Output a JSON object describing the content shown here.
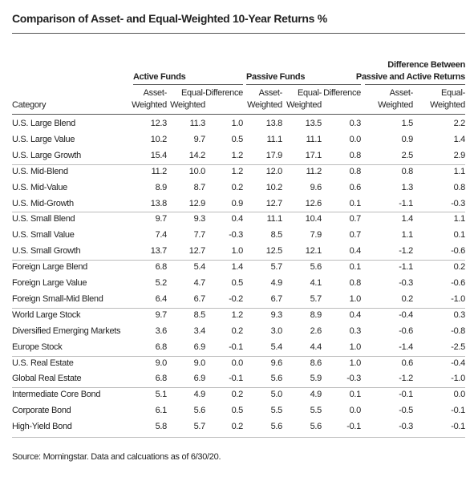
{
  "title": "Comparison of Asset- and Equal-Weighted 10-Year Returns %",
  "table": {
    "group_headers": [
      "Active Funds",
      "Passive Funds",
      "Difference Between\nPassive and Active Returns"
    ],
    "columns": [
      "Category",
      "Asset-\nWeighted",
      "Equal-\nWeighted",
      "Difference",
      "Asset-\nWeighted",
      "Equal-\nWeighted",
      "Difference",
      "Asset-\nWeighted",
      "Equal-\nWeighted"
    ],
    "row_groups": [
      [
        [
          "U.S. Large Blend",
          "12.3",
          "11.3",
          "1.0",
          "13.8",
          "13.5",
          "0.3",
          "1.5",
          "2.2"
        ],
        [
          "U.S. Large Value",
          "10.2",
          "9.7",
          "0.5",
          "11.1",
          "11.1",
          "0.0",
          "0.9",
          "1.4"
        ],
        [
          "U.S. Large Growth",
          "15.4",
          "14.2",
          "1.2",
          "17.9",
          "17.1",
          "0.8",
          "2.5",
          "2.9"
        ]
      ],
      [
        [
          "U.S. Mid-Blend",
          "11.2",
          "10.0",
          "1.2",
          "12.0",
          "11.2",
          "0.8",
          "0.8",
          "1.1"
        ],
        [
          "U.S. Mid-Value",
          "8.9",
          "8.7",
          "0.2",
          "10.2",
          "9.6",
          "0.6",
          "1.3",
          "0.8"
        ],
        [
          "U.S. Mid-Growth",
          "13.8",
          "12.9",
          "0.9",
          "12.7",
          "12.6",
          "0.1",
          "-1.1",
          "-0.3"
        ]
      ],
      [
        [
          "U.S. Small Blend",
          "9.7",
          "9.3",
          "0.4",
          "11.1",
          "10.4",
          "0.7",
          "1.4",
          "1.1"
        ],
        [
          "U.S. Small Value",
          "7.4",
          "7.7",
          "-0.3",
          "8.5",
          "7.9",
          "0.7",
          "1.1",
          "0.1"
        ],
        [
          "U.S. Small Growth",
          "13.7",
          "12.7",
          "1.0",
          "12.5",
          "12.1",
          "0.4",
          "-1.2",
          "-0.6"
        ]
      ],
      [
        [
          "Foreign Large Blend",
          "6.8",
          "5.4",
          "1.4",
          "5.7",
          "5.6",
          "0.1",
          "-1.1",
          "0.2"
        ],
        [
          "Foreign Large Value",
          "5.2",
          "4.7",
          "0.5",
          "4.9",
          "4.1",
          "0.8",
          "-0.3",
          "-0.6"
        ],
        [
          "Foreign Small-Mid Blend",
          "6.4",
          "6.7",
          "-0.2",
          "6.7",
          "5.7",
          "1.0",
          "0.2",
          "-1.0"
        ]
      ],
      [
        [
          "World Large Stock",
          "9.7",
          "8.5",
          "1.2",
          "9.3",
          "8.9",
          "0.4",
          "-0.4",
          "0.3"
        ],
        [
          "Diversified Emerging Markets",
          "3.6",
          "3.4",
          "0.2",
          "3.0",
          "2.6",
          "0.3",
          "-0.6",
          "-0.8"
        ],
        [
          "Europe Stock",
          "6.8",
          "6.9",
          "-0.1",
          "5.4",
          "4.4",
          "1.0",
          "-1.4",
          "-2.5"
        ]
      ],
      [
        [
          "U.S. Real Estate",
          "9.0",
          "9.0",
          "0.0",
          "9.6",
          "8.6",
          "1.0",
          "0.6",
          "-0.4"
        ],
        [
          "Global Real Estate",
          "6.8",
          "6.9",
          "-0.1",
          "5.6",
          "5.9",
          "-0.3",
          "-1.2",
          "-1.0"
        ]
      ],
      [
        [
          "Intermediate Core Bond",
          "5.1",
          "4.9",
          "0.2",
          "5.0",
          "4.9",
          "0.1",
          "-0.1",
          "0.0"
        ],
        [
          "Corporate Bond",
          "6.1",
          "5.6",
          "0.5",
          "5.5",
          "5.5",
          "0.0",
          "-0.5",
          "-0.1"
        ],
        [
          "High-Yield Bond",
          "5.8",
          "5.7",
          "0.2",
          "5.6",
          "5.6",
          "-0.1",
          "-0.3",
          "-0.1"
        ]
      ]
    ]
  },
  "source": "Source: Morningstar. Data and calcuations as of 6/30/20."
}
